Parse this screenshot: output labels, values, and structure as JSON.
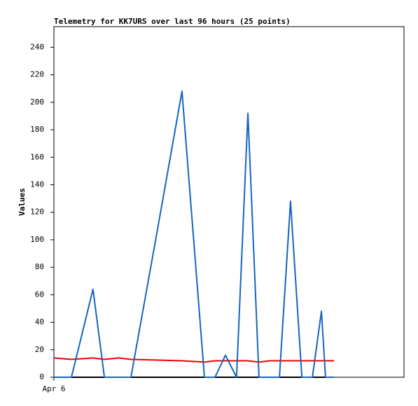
{
  "chart_data": {
    "type": "line",
    "title": "Telemetry for KK7URS over last 96 hours (25 points)",
    "y_label": "Values",
    "x": [
      0,
      6,
      13.4,
      17.3,
      22.3,
      26.4,
      35.3,
      43.9,
      51.6,
      55.2,
      58.8,
      62.6,
      66.5,
      70.3,
      73.9,
      77.3,
      81.1,
      85,
      88.6,
      91.7,
      93.1,
      94.1,
      94.8,
      95.5,
      96
    ],
    "xlim": [
      0,
      120
    ],
    "xticks": [
      {
        "value": 0,
        "label": "Apr 6"
      }
    ],
    "ylim": [
      0,
      255
    ],
    "yticks": [
      0,
      20,
      40,
      60,
      80,
      100,
      120,
      140,
      160,
      180,
      200,
      220,
      240
    ],
    "series": [
      {
        "color": "#000000",
        "values": [
          0,
          0,
          0,
          0,
          0,
          0,
          0,
          0,
          0,
          0,
          0,
          0,
          0,
          0,
          0,
          0,
          0,
          0,
          0,
          0,
          0,
          0,
          0,
          0,
          0
        ]
      },
      {
        "color": "#ee0000",
        "values": [
          14,
          13,
          14,
          13,
          14,
          13,
          12.5,
          12,
          11,
          12,
          12,
          12,
          12,
          11,
          12,
          12,
          12,
          12,
          12,
          12,
          12,
          12,
          12,
          12,
          12
        ]
      },
      {
        "color": "#1565c0",
        "values": [
          0,
          0,
          64,
          0,
          0,
          0,
          105,
          208,
          0,
          0,
          16,
          0,
          192,
          0,
          0,
          0,
          128,
          0,
          0,
          48,
          0,
          0,
          0,
          0,
          0
        ]
      }
    ]
  }
}
